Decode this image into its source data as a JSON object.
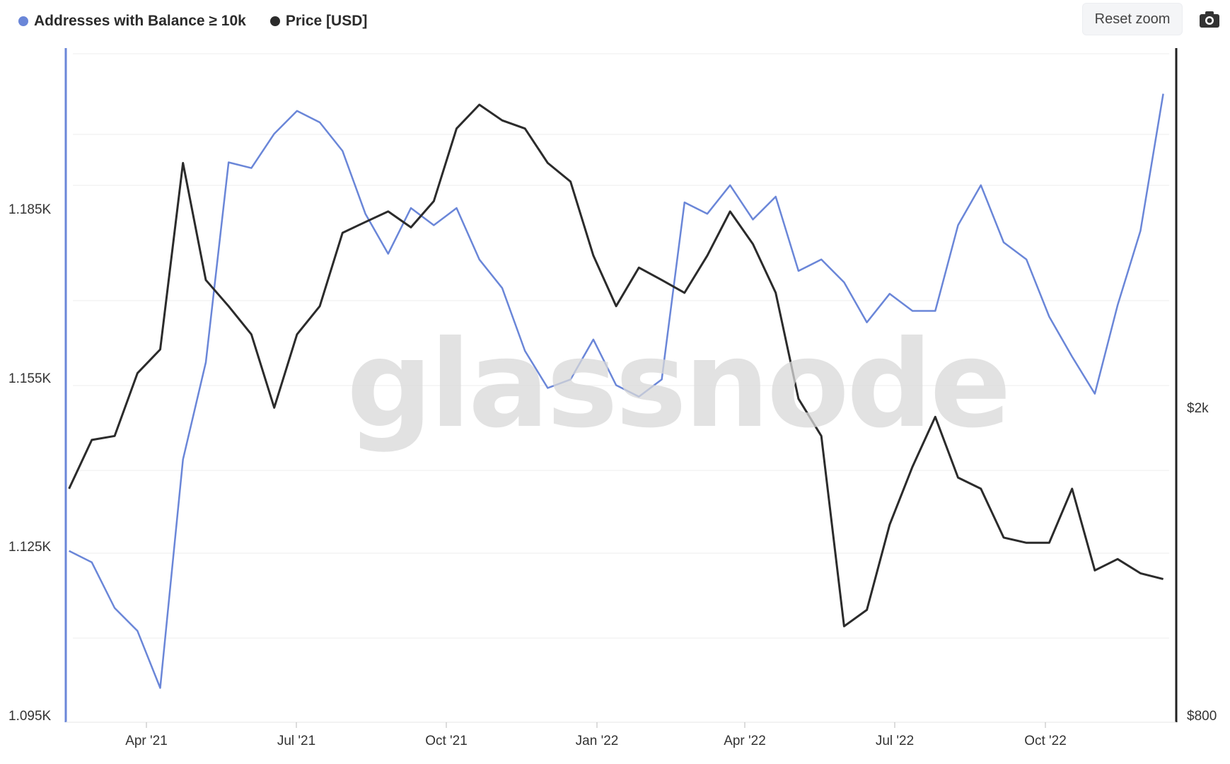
{
  "legend": {
    "series1": "Addresses with Balance ≥ 10k",
    "series2": "Price [USD]"
  },
  "toolbar": {
    "reset_zoom": "Reset zoom",
    "export_icon": "camera-icon"
  },
  "watermark": "glassnode",
  "colors": {
    "addresses": "#6a86d8",
    "price": "#2b2b2b",
    "grid": "#eeeeee"
  },
  "chart_data": {
    "type": "line",
    "title": "",
    "xlabel": "",
    "ylabel": "",
    "x_ticks": [
      "Apr '21",
      "Jul '21",
      "Oct '21",
      "Jan '22",
      "Apr '22",
      "Jul '22",
      "Oct '22"
    ],
    "y_left_ticks": [
      "1.185K",
      "1.155K",
      "1.125K",
      "1.095K"
    ],
    "y_right_ticks": [
      "$2k",
      "$800"
    ],
    "y_left_range": [
      1095,
      1213
    ],
    "y_right_range": [
      800,
      5400
    ],
    "y_right_scale": "log",
    "x": [
      "2021-02-22",
      "2021-03-08",
      "2021-03-22",
      "2021-04-05",
      "2021-04-19",
      "2021-05-03",
      "2021-05-17",
      "2021-05-31",
      "2021-06-14",
      "2021-06-28",
      "2021-07-12",
      "2021-07-26",
      "2021-08-09",
      "2021-08-23",
      "2021-09-06",
      "2021-09-20",
      "2021-10-04",
      "2021-10-18",
      "2021-11-01",
      "2021-11-15",
      "2021-11-29",
      "2021-12-13",
      "2021-12-27",
      "2022-01-10",
      "2022-01-24",
      "2022-02-07",
      "2022-02-21",
      "2022-03-07",
      "2022-03-21",
      "2022-04-04",
      "2022-04-18",
      "2022-05-02",
      "2022-05-16",
      "2022-05-30",
      "2022-06-13",
      "2022-06-27",
      "2022-07-11",
      "2022-07-25",
      "2022-08-08",
      "2022-08-22",
      "2022-09-05",
      "2022-09-19",
      "2022-10-03",
      "2022-10-17",
      "2022-10-31",
      "2022-11-14",
      "2022-11-28",
      "2022-12-12",
      "2022-12-26"
    ],
    "series": [
      {
        "name": "Addresses with Balance ≥ 10k",
        "axis": "left",
        "values": [
          1125.0,
          1123.0,
          1115.0,
          1111.0,
          1101.0,
          1141.0,
          1158.0,
          1193.0,
          1192.0,
          1198.0,
          1202.0,
          1200.0,
          1195.0,
          1184.0,
          1177.0,
          1185.0,
          1182.0,
          1185.0,
          1176.0,
          1171.0,
          1160.0,
          1153.5,
          1155.0,
          1162.0,
          1154.0,
          1152.0,
          1155.0,
          1186.0,
          1184.0,
          1189.0,
          1183.0,
          1187.0,
          1174.0,
          1176.0,
          1172.0,
          1165.0,
          1170.0,
          1167.0,
          1167.0,
          1182.0,
          1189.0,
          1179.0,
          1176.0,
          1166.0,
          1159.0,
          1152.5,
          1168.0,
          1181.0,
          1205.0
        ]
      },
      {
        "name": "Price [USD]",
        "axis": "right",
        "values": [
          1550,
          1780,
          1800,
          2150,
          2300,
          3900,
          2800,
          2600,
          2400,
          1950,
          2400,
          2600,
          3200,
          3300,
          3400,
          3250,
          3500,
          4300,
          4600,
          4400,
          4300,
          3900,
          3700,
          3000,
          2600,
          2900,
          2800,
          2700,
          3000,
          3400,
          3100,
          2700,
          2000,
          1800,
          1050,
          1100,
          1400,
          1650,
          1900,
          1600,
          1550,
          1350,
          1330,
          1330,
          1550,
          1230,
          1270,
          1220,
          1200
        ]
      }
    ]
  }
}
